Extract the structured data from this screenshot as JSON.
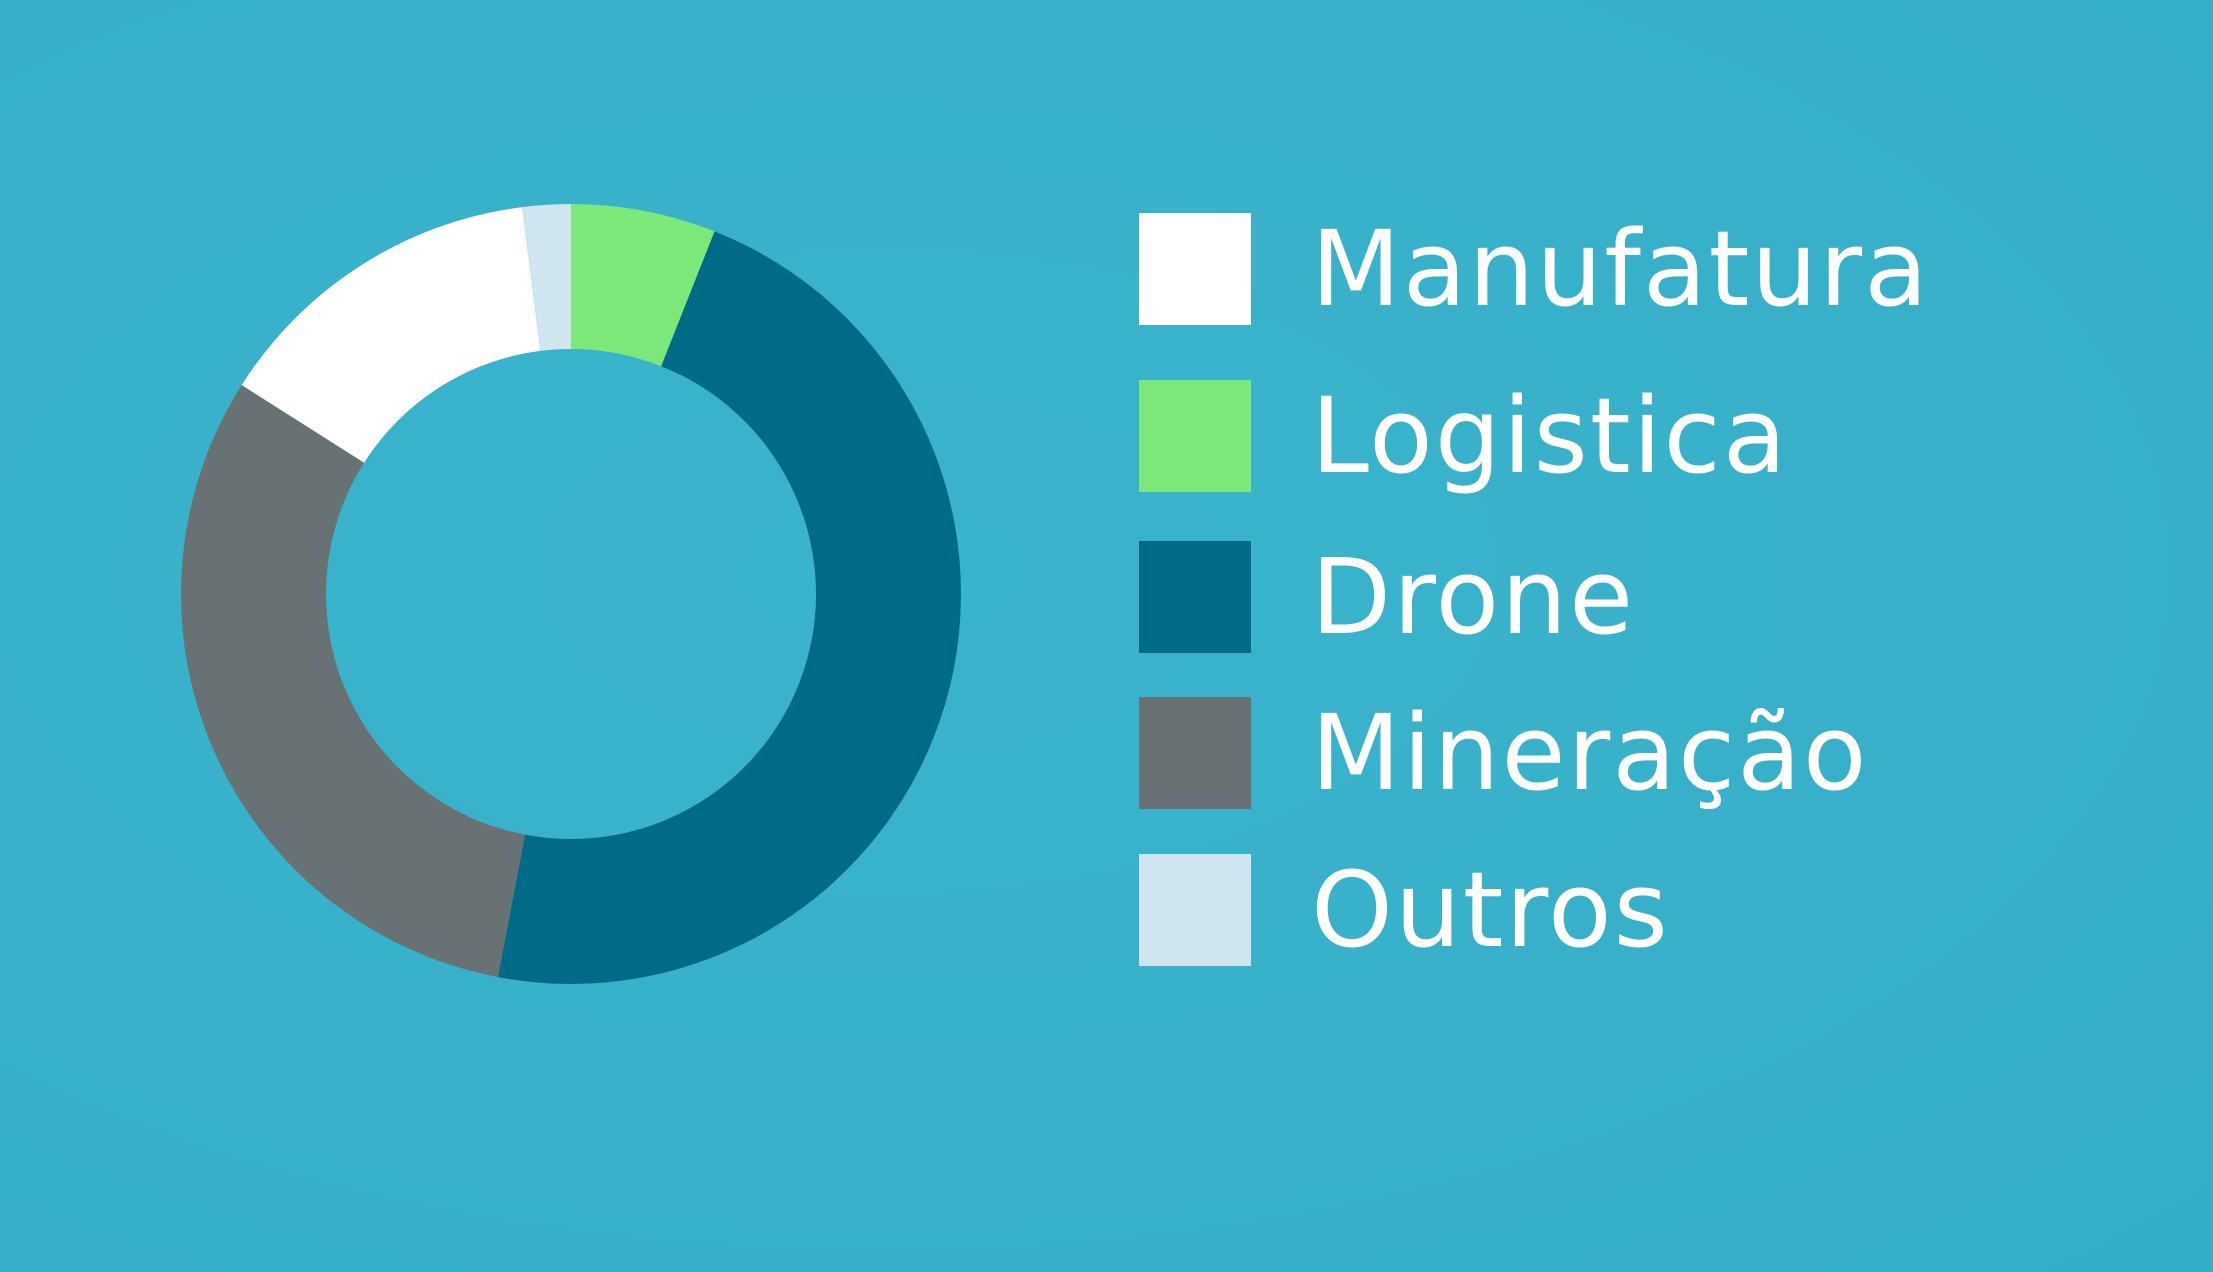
{
  "chart_data": {
    "type": "pie",
    "donut": true,
    "categories": [
      "Logistica",
      "Drone",
      "Mineração",
      "Manufatura",
      "Outros"
    ],
    "values": [
      6,
      47,
      31,
      14,
      2
    ],
    "colors": [
      "#7de87a",
      "#006b87",
      "#687274",
      "#ffffff",
      "#cfe5ef"
    ],
    "start_angle_deg": 0,
    "direction": "clockwise",
    "legend_position": "right",
    "legend": [
      {
        "label": "Manufatura",
        "color": "#ffffff"
      },
      {
        "label": "Logistica",
        "color": "#7de87a"
      },
      {
        "label": "Drone",
        "color": "#006b87"
      },
      {
        "label": "Mineração",
        "color": "#687274"
      },
      {
        "label": "Outros",
        "color": "#cfe5ef"
      }
    ]
  },
  "colors": {
    "background": "#38b0cb",
    "legend_text": "#ffffff"
  }
}
